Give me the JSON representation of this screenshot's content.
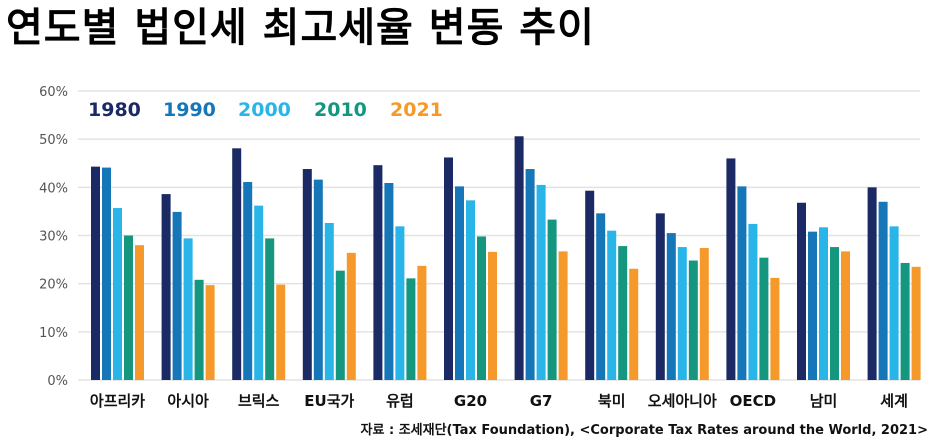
{
  "title": "연도별 법인세 최고세율 변동 추이",
  "source": "자료 : 조세재단(Tax Foundation), <Corporate Tax Rates around the World, 2021>",
  "chart_data": {
    "type": "bar",
    "title": "연도별 법인세 최고세율 변동 추이",
    "xlabel": "",
    "ylabel": "",
    "ylim": [
      0,
      60
    ],
    "yticks": [
      0,
      10,
      20,
      30,
      40,
      50,
      60
    ],
    "ytick_labels": [
      "0%",
      "10%",
      "20%",
      "30%",
      "40%",
      "50%",
      "60%"
    ],
    "grid": true,
    "legend_position": "top-left",
    "categories": [
      "아프리카",
      "아시아",
      "브릭스",
      "EU국가",
      "유럽",
      "G20",
      "G7",
      "북미",
      "오세아니아",
      "OECD",
      "남미",
      "세계"
    ],
    "series": [
      {
        "name": "1980",
        "color": "#1b2a64",
        "values": [
          44.3,
          38.6,
          48.1,
          43.8,
          44.6,
          46.2,
          50.6,
          39.3,
          34.6,
          46.0,
          36.8,
          40.0
        ]
      },
      {
        "name": "1990",
        "color": "#1577b8",
        "values": [
          44.1,
          34.9,
          41.1,
          41.6,
          40.9,
          40.2,
          43.8,
          34.6,
          30.5,
          40.2,
          30.8,
          37.0
        ]
      },
      {
        "name": "2000",
        "color": "#29b5e8",
        "values": [
          35.7,
          29.4,
          36.2,
          32.6,
          31.9,
          37.3,
          40.5,
          31.0,
          27.6,
          32.4,
          31.7,
          31.9
        ]
      },
      {
        "name": "2010",
        "color": "#14967f",
        "values": [
          30.0,
          20.8,
          29.4,
          22.7,
          21.1,
          29.8,
          33.3,
          27.8,
          24.8,
          25.4,
          27.6,
          24.3
        ]
      },
      {
        "name": "2021",
        "color": "#f59a2a",
        "values": [
          28.0,
          19.7,
          19.8,
          26.4,
          23.7,
          26.6,
          26.7,
          23.1,
          27.4,
          21.2,
          26.7,
          23.5
        ]
      }
    ]
  }
}
